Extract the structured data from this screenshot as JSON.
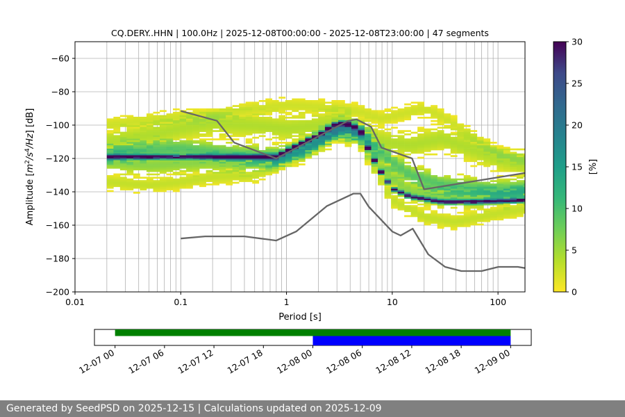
{
  "footer": {
    "text": "Generated by SeedPSD on 2025-12-15 | Calculations updated on 2025-12-09"
  },
  "colors": {
    "nlnm_nhnm": "#666666",
    "grid": "#b0b0b0",
    "timeline_all": "#008000",
    "timeline_selected": "#0000ff",
    "footer_bg": "#808080"
  },
  "chart_data": [
    {
      "type": "heatmap",
      "title": "CQ.DERY..HHN | 100.0Hz | 2025-12-08T00:00:00 - 2025-12-08T23:00:00 | 47 segments",
      "xlabel": "Period [s]",
      "ylabel": "Amplitude [m²/s⁴/Hz] [dB]",
      "xscale": "log",
      "xlim": [
        0.01,
        180
      ],
      "ylim": [
        -200,
        -50
      ],
      "xticks": [
        0.01,
        0.1,
        1,
        10,
        100
      ],
      "xtick_labels": [
        "0.01",
        "0.1",
        "1",
        "10",
        "100"
      ],
      "yticks": [
        -200,
        -180,
        -160,
        -140,
        -120,
        -100,
        -80,
        -60
      ],
      "ytick_labels": [
        "−200",
        "−180",
        "−160",
        "−140",
        "−120",
        "−100",
        "−80",
        "−60"
      ],
      "colorbar": {
        "label": "[%]",
        "range": [
          0,
          30
        ],
        "ticks": [
          0,
          5,
          10,
          15,
          20,
          25,
          30
        ],
        "tick_labels": [
          "0",
          "5",
          "10",
          "15",
          "20",
          "25",
          "30"
        ]
      },
      "reference_curves": [
        {
          "name": "NHNM",
          "points": [
            [
              0.1,
              -91.5
            ],
            [
              0.22,
              -97.4
            ],
            [
              0.32,
              -110.5
            ],
            [
              0.8,
              -120
            ],
            [
              3.8,
              -97.5
            ],
            [
              4.6,
              -96.6
            ],
            [
              6.3,
              -101
            ],
            [
              7.9,
              -113.5
            ],
            [
              15.4,
              -120
            ],
            [
              20,
              -138.5
            ],
            [
              180,
              -128.7
            ]
          ]
        },
        {
          "name": "NLNM",
          "points": [
            [
              0.1,
              -168
            ],
            [
              0.17,
              -166.7
            ],
            [
              0.4,
              -166.7
            ],
            [
              0.8,
              -169.2
            ],
            [
              1.24,
              -163.7
            ],
            [
              2.4,
              -148.6
            ],
            [
              4.3,
              -141.1
            ],
            [
              5.0,
              -141.1
            ],
            [
              6.0,
              -149
            ],
            [
              10,
              -163.8
            ],
            [
              12,
              -166.2
            ],
            [
              15.6,
              -162.1
            ],
            [
              21.9,
              -177.5
            ],
            [
              31.6,
              -185
            ],
            [
              45,
              -187.5
            ],
            [
              70,
              -187.5
            ],
            [
              101,
              -185
            ],
            [
              154,
              -185
            ],
            [
              180,
              -185.7
            ]
          ]
        }
      ],
      "psd_bands": [
        {
          "name": "high-noise band",
          "points": [
            [
              0.02,
              -100
            ],
            [
              0.05,
              -97
            ],
            [
              0.1,
              -95
            ],
            [
              0.2,
              -94
            ],
            [
              0.5,
              -90
            ],
            [
              1,
              -88
            ],
            [
              2,
              -89
            ],
            [
              3,
              -90
            ],
            [
              5,
              -92
            ],
            [
              8,
              -96
            ],
            [
              15,
              -92
            ],
            [
              20,
              -90
            ],
            [
              30,
              -95
            ],
            [
              60,
              -108
            ],
            [
              100,
              -117
            ],
            [
              180,
              -120
            ]
          ],
          "spread": 3,
          "density": 2.5
        },
        {
          "name": "upper-mid band",
          "points": [
            [
              0.02,
              -110
            ],
            [
              0.05,
              -106
            ],
            [
              0.1,
              -102
            ],
            [
              0.2,
              -99
            ],
            [
              0.5,
              -100
            ],
            [
              1,
              -102
            ],
            [
              2,
              -100
            ],
            [
              3.5,
              -98
            ],
            [
              5,
              -103
            ],
            [
              8,
              -110
            ],
            [
              15,
              -112
            ],
            [
              30,
              -108
            ],
            [
              60,
              -115
            ],
            [
              100,
              -120
            ],
            [
              180,
              -124
            ]
          ],
          "spread": 5,
          "density": 4
        },
        {
          "name": "mid band",
          "points": [
            [
              0.02,
              -117
            ],
            [
              0.05,
              -115
            ],
            [
              0.1,
              -114
            ],
            [
              0.2,
              -116
            ],
            [
              0.4,
              -118
            ],
            [
              0.8,
              -119
            ],
            [
              1.5,
              -113
            ],
            [
              2.5,
              -106
            ],
            [
              3.5,
              -101
            ],
            [
              5,
              -104
            ],
            [
              8,
              -118
            ],
            [
              15,
              -130
            ],
            [
              30,
              -136
            ],
            [
              60,
              -138
            ],
            [
              100,
              -139
            ],
            [
              180,
              -138
            ]
          ],
          "spread": 4,
          "density": 9
        },
        {
          "name": "lower-mid band",
          "points": [
            [
              0.02,
              -122
            ],
            [
              0.05,
              -124
            ],
            [
              0.1,
              -123
            ],
            [
              0.2,
              -122
            ],
            [
              0.4,
              -123
            ],
            [
              0.8,
              -121
            ],
            [
              1.5,
              -115
            ],
            [
              3,
              -103
            ],
            [
              5,
              -106
            ],
            [
              8,
              -127
            ],
            [
              15,
              -140
            ],
            [
              30,
              -143
            ],
            [
              60,
              -144
            ],
            [
              100,
              -143
            ],
            [
              180,
              -142
            ]
          ],
          "spread": 4,
          "density": 6
        },
        {
          "name": "low-noise band",
          "points": [
            [
              0.02,
              -134
            ],
            [
              0.05,
              -136
            ],
            [
              0.1,
              -134
            ],
            [
              0.2,
              -131
            ],
            [
              0.5,
              -130
            ],
            [
              0.8,
              -124
            ],
            [
              1.5,
              -117
            ],
            [
              3,
              -105
            ],
            [
              5,
              -110
            ],
            [
              10,
              -145
            ],
            [
              20,
              -155
            ],
            [
              40,
              -158
            ],
            [
              80,
              -154
            ],
            [
              180,
              -150
            ]
          ],
          "spread": 3,
          "density": 3
        },
        {
          "name": "mode line",
          "points": [
            [
              0.8,
              -119
            ],
            [
              1.2,
              -113
            ],
            [
              2,
              -106
            ],
            [
              3,
              -99
            ],
            [
              4,
              -99.5
            ],
            [
              5,
              -103
            ],
            [
              6,
              -115
            ],
            [
              8,
              -129
            ],
            [
              10,
              -138
            ],
            [
              15,
              -143
            ],
            [
              30,
              -146
            ],
            [
              60,
              -146
            ],
            [
              180,
              -145
            ]
          ],
          "spread": 0.8,
          "density": 28
        }
      ]
    },
    {
      "type": "timeline",
      "xticks": [
        "12-07 00",
        "12-07 06",
        "12-07 12",
        "12-07 18",
        "12-08 00",
        "12-08 06",
        "12-08 12",
        "12-08 18",
        "12-09 00"
      ],
      "bars": [
        {
          "name": "available data",
          "start_hour": 0,
          "end_hour": 48,
          "color": "#008000"
        },
        {
          "name": "selected segments",
          "start_hour": 24,
          "end_hour": 48,
          "color": "#0000ff"
        }
      ],
      "range_hours": [
        -2.5,
        50.5
      ]
    }
  ]
}
